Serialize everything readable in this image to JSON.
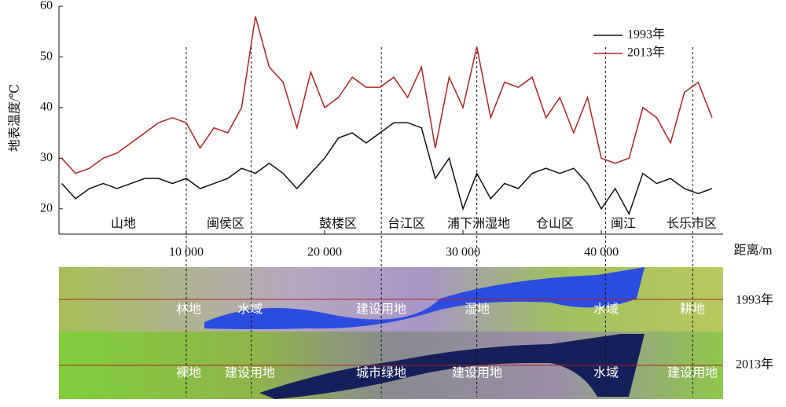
{
  "chart_data": {
    "type": "line",
    "y_label": "地表温度/℃",
    "x_label": "距离/m",
    "x": [
      1000,
      2000,
      3000,
      4000,
      5000,
      6000,
      7000,
      8000,
      9000,
      10000,
      11000,
      12000,
      13000,
      14000,
      15000,
      16000,
      17000,
      18000,
      19000,
      20000,
      21000,
      22000,
      23000,
      24000,
      25000,
      26000,
      27000,
      28000,
      29000,
      30000,
      31000,
      32000,
      33000,
      34000,
      35000,
      36000,
      37000,
      38000,
      39000,
      40000,
      41000,
      42000,
      43000,
      44000,
      45000,
      46000,
      47000,
      48000
    ],
    "series": [
      {
        "name": "1993年",
        "color": "#111111",
        "values": [
          25,
          22,
          24,
          25,
          24,
          25,
          26,
          26,
          25,
          26,
          24,
          25,
          26,
          28,
          27,
          29,
          27,
          24,
          27,
          30,
          34,
          35,
          33,
          35,
          37,
          37,
          36,
          26,
          30,
          20,
          27,
          22,
          25,
          24,
          27,
          28,
          27,
          28,
          25,
          20,
          24,
          19,
          27,
          25,
          26,
          24,
          23,
          24
        ]
      },
      {
        "name": "2013年",
        "color": "#b22222",
        "values": [
          30,
          27,
          28,
          30,
          31,
          33,
          35,
          37,
          38,
          37,
          32,
          36,
          35,
          40,
          58,
          48,
          45,
          36,
          47,
          40,
          42,
          46,
          44,
          44,
          46,
          42,
          48,
          32,
          46,
          40,
          52,
          38,
          45,
          44,
          46,
          38,
          42,
          35,
          42,
          30,
          29,
          30,
          40,
          38,
          33,
          43,
          45,
          38
        ]
      }
    ],
    "xlim": [
      800,
      48800
    ],
    "ylim": [
      15,
      60
    ],
    "xticks": [
      {
        "value": 10000,
        "label": "10 000"
      },
      {
        "value": 20000,
        "label": "20 000"
      },
      {
        "value": 30000,
        "label": "30 000"
      },
      {
        "value": 40000,
        "label": "40 000"
      }
    ],
    "yticks": [
      20,
      30,
      40,
      50,
      60
    ],
    "legend": "upper right",
    "region_labels": [
      "山地",
      "闽侯区",
      "鼓楼区",
      "台江区",
      "浦下洲湿地",
      "仓山区",
      "闽江",
      "长乐市区"
    ],
    "reference_lines_x": [
      10000,
      14700,
      24100,
      31000,
      40300,
      46600
    ],
    "image_strips": [
      {
        "year": "1993年",
        "labels": [
          "林地",
          "水域",
          "建设用地",
          "湿地",
          "水域",
          "耕地"
        ]
      },
      {
        "year": "2013年",
        "labels": [
          "裸地",
          "建设用地",
          "城市绿地",
          "建设用地",
          "水域",
          "建设用地"
        ]
      }
    ]
  }
}
